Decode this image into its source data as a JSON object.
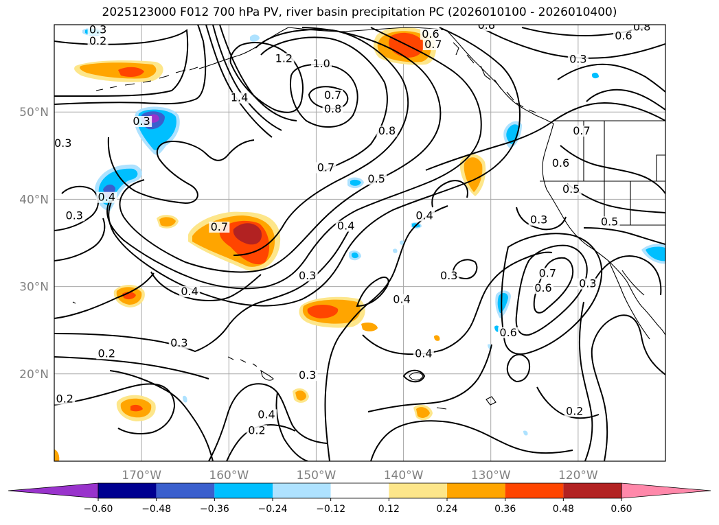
{
  "title": "2025123000 F012 700 hPa PV, river basin precipitation PC (2026010100 - 2026010400)",
  "map": {
    "lon_range": [
      -180,
      -110
    ],
    "lat_range": [
      10,
      60
    ],
    "lon_ticks": [
      {
        "lon": -170,
        "label": "170°W"
      },
      {
        "lon": -160,
        "label": "160°W"
      },
      {
        "lon": -150,
        "label": "150°W"
      },
      {
        "lon": -140,
        "label": "140°W"
      },
      {
        "lon": -130,
        "label": "130°W"
      },
      {
        "lon": -120,
        "label": "120°W"
      }
    ],
    "lat_ticks": [
      {
        "lat": 20,
        "label": "20°N"
      },
      {
        "lat": 30,
        "label": "30°N"
      },
      {
        "lat": 40,
        "label": "40°N"
      },
      {
        "lat": 50,
        "label": "50°N"
      }
    ],
    "contour_labels": [
      {
        "text": "0.3",
        "lon": -175.0,
        "lat": 59.1
      },
      {
        "text": "0.2",
        "lon": -175.0,
        "lat": 57.8
      },
      {
        "text": "1.2",
        "lon": -153.7,
        "lat": 55.8
      },
      {
        "text": "1.0",
        "lon": -149.4,
        "lat": 55.2
      },
      {
        "text": "1.4",
        "lon": -158.8,
        "lat": 51.3
      },
      {
        "text": "0.7",
        "lon": -148.1,
        "lat": 51.6
      },
      {
        "text": "0.8",
        "lon": -148.1,
        "lat": 50.0
      },
      {
        "text": "0.6",
        "lon": -136.9,
        "lat": 58.6
      },
      {
        "text": "0.7",
        "lon": -136.6,
        "lat": 57.4
      },
      {
        "text": "0.3",
        "lon": -170.0,
        "lat": 48.6
      },
      {
        "text": "0.3",
        "lon": -179.0,
        "lat": 46.1
      },
      {
        "text": "0.8",
        "lon": -141.9,
        "lat": 47.5
      },
      {
        "text": "0.7",
        "lon": -148.9,
        "lat": 43.3
      },
      {
        "text": "0.5",
        "lon": -143.1,
        "lat": 42.0
      },
      {
        "text": "0.4",
        "lon": -174.0,
        "lat": 39.9
      },
      {
        "text": "0.3",
        "lon": -177.7,
        "lat": 37.8
      },
      {
        "text": "0.7",
        "lon": -161.1,
        "lat": 36.5
      },
      {
        "text": "0.4",
        "lon": -146.6,
        "lat": 36.6
      },
      {
        "text": "0.4",
        "lon": -137.6,
        "lat": 37.8
      },
      {
        "text": "0.3",
        "lon": -124.5,
        "lat": 37.3
      },
      {
        "text": "0.3",
        "lon": -151.0,
        "lat": 30.9
      },
      {
        "text": "0.4",
        "lon": -164.5,
        "lat": 29.1
      },
      {
        "text": "0.4",
        "lon": -140.2,
        "lat": 28.2
      },
      {
        "text": "0.3",
        "lon": -134.8,
        "lat": 30.9
      },
      {
        "text": "0.7",
        "lon": -123.5,
        "lat": 31.2
      },
      {
        "text": "0.6",
        "lon": -124.0,
        "lat": 29.5
      },
      {
        "text": "0.3",
        "lon": -118.9,
        "lat": 30.0
      },
      {
        "text": "0.6",
        "lon": -128.0,
        "lat": 24.4
      },
      {
        "text": "0.3",
        "lon": -165.7,
        "lat": 23.2
      },
      {
        "text": "0.2",
        "lon": -174.0,
        "lat": 22.0
      },
      {
        "text": "0.4",
        "lon": -137.7,
        "lat": 22.0
      },
      {
        "text": "0.3",
        "lon": -151.0,
        "lat": 19.5
      },
      {
        "text": "0.2",
        "lon": -178.8,
        "lat": 16.8
      },
      {
        "text": "0.4",
        "lon": -155.7,
        "lat": 15.0
      },
      {
        "text": "0.2",
        "lon": -156.8,
        "lat": 13.2
      },
      {
        "text": "0.2",
        "lon": -120.4,
        "lat": 15.4
      },
      {
        "text": "0.5",
        "lon": -120.8,
        "lat": 40.8
      },
      {
        "text": "0.6",
        "lon": -122.0,
        "lat": 43.8
      },
      {
        "text": "0.7",
        "lon": -119.6,
        "lat": 47.5
      },
      {
        "text": "0.5",
        "lon": -116.4,
        "lat": 37.1
      },
      {
        "text": "0.8",
        "lon": -130.5,
        "lat": 59.6
      },
      {
        "text": "0.6",
        "lon": -114.8,
        "lat": 58.4
      },
      {
        "text": "0.3",
        "lon": -120.0,
        "lat": 55.7
      },
      {
        "text": "0.8",
        "lon": -112.7,
        "lat": 59.4
      }
    ]
  },
  "colorbar": {
    "ticks": [
      "−0.60",
      "−0.48",
      "−0.36",
      "−0.24",
      "−0.12",
      "0.12",
      "0.24",
      "0.36",
      "0.48",
      "0.60"
    ],
    "under_color": "#9933cc",
    "over_color": "#ff88aa",
    "colors": [
      "#000090",
      "#3a5fcd",
      "#00bfff",
      "#aee2ff",
      "#ffffff",
      "#fde68a",
      "#ffa500",
      "#ff4500",
      "#b22222"
    ]
  }
}
